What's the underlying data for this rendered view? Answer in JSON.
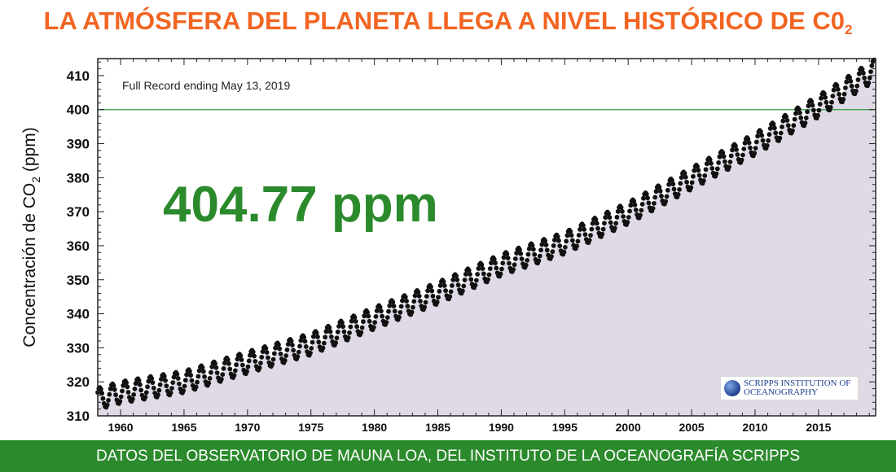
{
  "header": {
    "title": "LA ATMÓSFERA DEL PLANETA LLEGA A NIVEL HISTÓRICO DE C0",
    "title_sub": "2"
  },
  "footer": {
    "text": "DATOS DEL OBSERVATORIO DE MAUNA LOA, DEL INSTITUTO DE LA OCEANOGRAFÍA SCRIPPS"
  },
  "logo": {
    "line1": "SCRIPPS INSTITUTION OF",
    "line2": "OCEANOGRAPHY"
  },
  "colors": {
    "title": "#f26522",
    "footer_bg": "#2b8a2c",
    "big_value": "#2b8a2c",
    "reference_line": "#2e9e3a",
    "area_fill": "#e0d9e6",
    "points": "#111111"
  },
  "chart_data": {
    "type": "scatter",
    "annotation": "Full Record ending May 13, 2019",
    "big_value": "404.77 ppm",
    "ylabel": "Concentración de CO",
    "ylabel_sub": "2",
    "ylabel_unit": "(ppm)",
    "xlim": [
      1958.2,
      2019.5
    ],
    "ylim": [
      310,
      415
    ],
    "yticks": [
      310,
      320,
      330,
      340,
      350,
      360,
      370,
      380,
      390,
      400,
      410
    ],
    "xticks": [
      1960,
      1965,
      1970,
      1975,
      1980,
      1985,
      1990,
      1995,
      2000,
      2005,
      2010,
      2015
    ],
    "reference_line": 400,
    "area_fill": true,
    "series": [
      {
        "trend_points": [
          [
            1958.2,
            315.0
          ],
          [
            1960,
            316.9
          ],
          [
            1965,
            320.0
          ],
          [
            1970,
            325.7
          ],
          [
            1975,
            331.1
          ],
          [
            1980,
            338.7
          ],
          [
            1985,
            346.1
          ],
          [
            1990,
            354.4
          ],
          [
            1995,
            360.8
          ],
          [
            2000,
            369.6
          ],
          [
            2005,
            379.8
          ],
          [
            2010,
            389.9
          ],
          [
            2015,
            401.0
          ],
          [
            2019.4,
            411.5
          ]
        ],
        "seasonal_amplitude": 3.2
      }
    ]
  }
}
